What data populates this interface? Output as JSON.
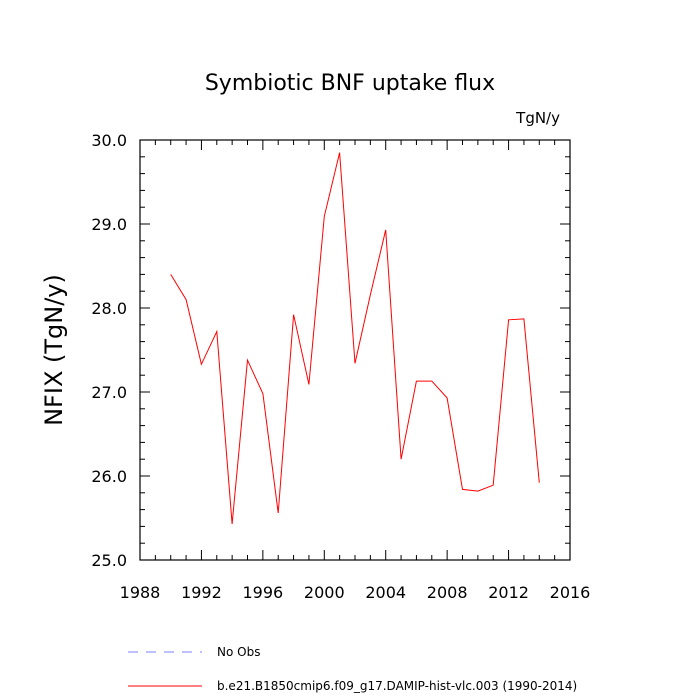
{
  "chart_data": {
    "type": "line",
    "title": "Symbiotic BNF uptake flux",
    "units_label": "TgN/y",
    "ylabel": "NFIX  (TgN/y)",
    "xlabel": "",
    "xlim": [
      1988,
      2016
    ],
    "ylim": [
      25.0,
      30.0
    ],
    "x_ticks": [
      "1988",
      "1992",
      "1996",
      "2000",
      "2004",
      "2008",
      "2012",
      "2016"
    ],
    "y_ticks": [
      "25.0",
      "26.0",
      "27.0",
      "28.0",
      "29.0",
      "30.0"
    ],
    "grid": false,
    "series": [
      {
        "name": "b.e21.B1850cmip6.f09_g17.DAMIP-hist-vlc.003 (1990-2014)",
        "color": "#ff0000",
        "x": [
          1990,
          1991,
          1992,
          1993,
          1994,
          1995,
          1996,
          1997,
          1998,
          1999,
          2000,
          2001,
          2002,
          2003,
          2004,
          2005,
          2006,
          2007,
          2008,
          2009,
          2010,
          2011,
          2012,
          2013,
          2014
        ],
        "y": [
          28.4,
          28.1,
          27.33,
          27.72,
          25.43,
          27.38,
          26.98,
          25.56,
          27.92,
          27.09,
          29.09,
          29.85,
          27.34,
          28.16,
          28.93,
          26.2,
          27.13,
          27.13,
          26.93,
          25.84,
          25.82,
          25.89,
          27.86,
          27.87,
          25.92
        ]
      }
    ],
    "legend": [
      {
        "label": "No Obs",
        "color": "#8080ff",
        "dash": true
      },
      {
        "label": "b.e21.B1850cmip6.f09_g17.DAMIP-hist-vlc.003 (1990-2014)",
        "color": "#ff0000",
        "dash": false
      }
    ]
  }
}
